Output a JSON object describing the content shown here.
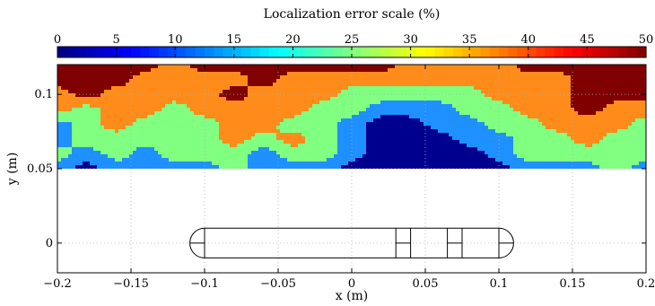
{
  "colorbar": {
    "title": "Localization error scale (%)",
    "ticks": [
      0,
      5,
      10,
      15,
      20,
      25,
      30,
      35,
      40,
      45,
      50
    ],
    "range": [
      0,
      50
    ]
  },
  "chart_data": {
    "type": "heatmap",
    "title": "",
    "xlabel": "x (m)",
    "ylabel": "y (m)",
    "xlim": [
      -0.2,
      0.2
    ],
    "ylim": [
      -0.02,
      0.12
    ],
    "xticks": [
      -0.2,
      -0.15,
      -0.1,
      -0.05,
      0,
      0.05,
      0.1,
      0.15,
      0.2
    ],
    "xtick_labels": [
      "−0.2",
      "−0.15",
      "−0.1",
      "−0.05",
      "0",
      "0.05",
      "0.1",
      "0.15",
      "0.2"
    ],
    "yticks": [
      0,
      0.05,
      0.1
    ],
    "ytick_labels": [
      "0",
      "0.05",
      "0.1"
    ],
    "grid": true,
    "contour_region": {
      "x": [
        -0.2,
        0.2
      ],
      "y": [
        0.05,
        0.12
      ]
    },
    "contour_levels": [
      0,
      10,
      20,
      30,
      40,
      50
    ],
    "level_colors": [
      "#00008f",
      "#1e90ff",
      "#80ff80",
      "#ff8c1a",
      "#800000"
    ],
    "error_percent_grid": {
      "x": [
        -0.2,
        -0.18,
        -0.16,
        -0.14,
        -0.12,
        -0.1,
        -0.08,
        -0.06,
        -0.04,
        -0.02,
        0,
        0.02,
        0.04,
        0.06,
        0.08,
        0.1,
        0.12,
        0.14,
        0.16,
        0.18,
        0.2
      ],
      "y": [
        0.05,
        0.06,
        0.07,
        0.08,
        0.09,
        0.1,
        0.11,
        0.12
      ],
      "values": [
        [
          15,
          5,
          15,
          15,
          15,
          15,
          25,
          15,
          15,
          15,
          5,
          5,
          5,
          5,
          5,
          5,
          15,
          15,
          15,
          25,
          15
        ],
        [
          25,
          15,
          25,
          15,
          25,
          25,
          25,
          15,
          25,
          25,
          15,
          5,
          5,
          5,
          5,
          15,
          25,
          25,
          25,
          25,
          25
        ],
        [
          15,
          25,
          25,
          25,
          25,
          25,
          35,
          25,
          35,
          25,
          15,
          5,
          5,
          5,
          15,
          15,
          25,
          25,
          35,
          25,
          25
        ],
        [
          15,
          25,
          35,
          25,
          25,
          25,
          35,
          35,
          25,
          25,
          15,
          5,
          5,
          15,
          15,
          25,
          25,
          35,
          35,
          35,
          25
        ],
        [
          35,
          25,
          35,
          35,
          25,
          35,
          35,
          35,
          35,
          25,
          25,
          15,
          15,
          15,
          25,
          25,
          35,
          35,
          45,
          35,
          35
        ],
        [
          35,
          45,
          35,
          35,
          35,
          35,
          45,
          35,
          35,
          35,
          25,
          25,
          25,
          25,
          25,
          35,
          35,
          35,
          45,
          45,
          45
        ],
        [
          45,
          45,
          45,
          35,
          35,
          35,
          35,
          45,
          35,
          35,
          35,
          35,
          35,
          35,
          35,
          35,
          35,
          35,
          45,
          45,
          45
        ],
        [
          45,
          45,
          45,
          45,
          35,
          45,
          45,
          45,
          45,
          45,
          45,
          45,
          35,
          35,
          35,
          35,
          45,
          45,
          45,
          45,
          45
        ]
      ]
    },
    "probe_outline": {
      "x_range": [
        -0.11,
        0.11
      ],
      "y_range": [
        -0.01,
        0.01
      ],
      "segment_x": [
        -0.1,
        0.03,
        0.04,
        0.065,
        0.075,
        0.1
      ]
    }
  }
}
